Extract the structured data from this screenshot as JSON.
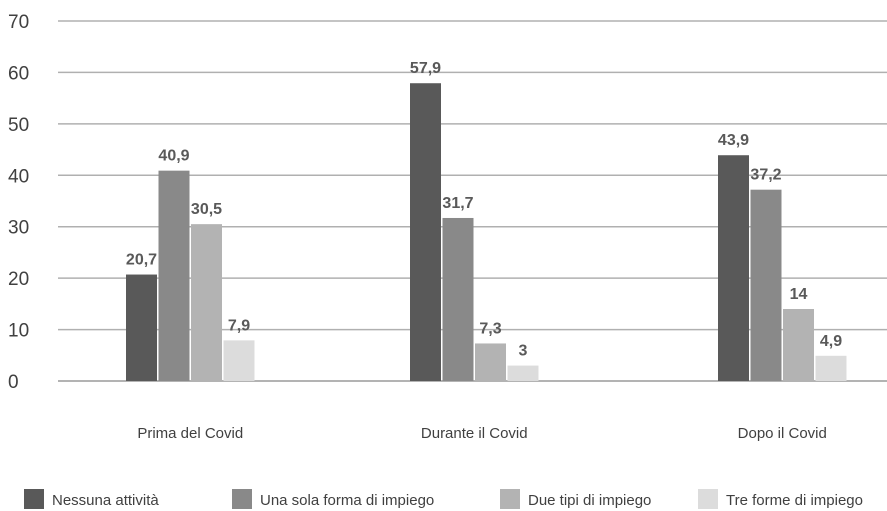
{
  "chart_data": {
    "type": "bar",
    "title": "",
    "xlabel": "",
    "ylabel": "",
    "categories": [
      "Prima del Covid",
      "Durante il Covid",
      "Dopo il Covid"
    ],
    "series": [
      {
        "name": "Nessuna attività",
        "color": "#595959",
        "values": [
          20.7,
          57.9,
          43.9
        ],
        "labels": [
          "20,7",
          "57,9",
          "43,9"
        ]
      },
      {
        "name": "Una sola forma di impiego",
        "color": "#898989",
        "values": [
          40.9,
          31.7,
          37.2
        ],
        "labels": [
          "40,9",
          "31,7",
          "37,2"
        ]
      },
      {
        "name": "Due tipi di impiego",
        "color": "#b3b3b3",
        "values": [
          30.5,
          7.3,
          14
        ],
        "labels": [
          "30,5",
          "7,3",
          "14"
        ]
      },
      {
        "name": "Tre forme di impiego",
        "color": "#dcdcdc",
        "values": [
          7.9,
          3,
          4.9
        ],
        "labels": [
          "7,9",
          "3",
          "4,9"
        ]
      }
    ],
    "ylim": [
      0,
      70
    ],
    "yticks": [
      0,
      10,
      20,
      30,
      40,
      50,
      60,
      70
    ],
    "grid": true,
    "legend_position": "bottom"
  }
}
